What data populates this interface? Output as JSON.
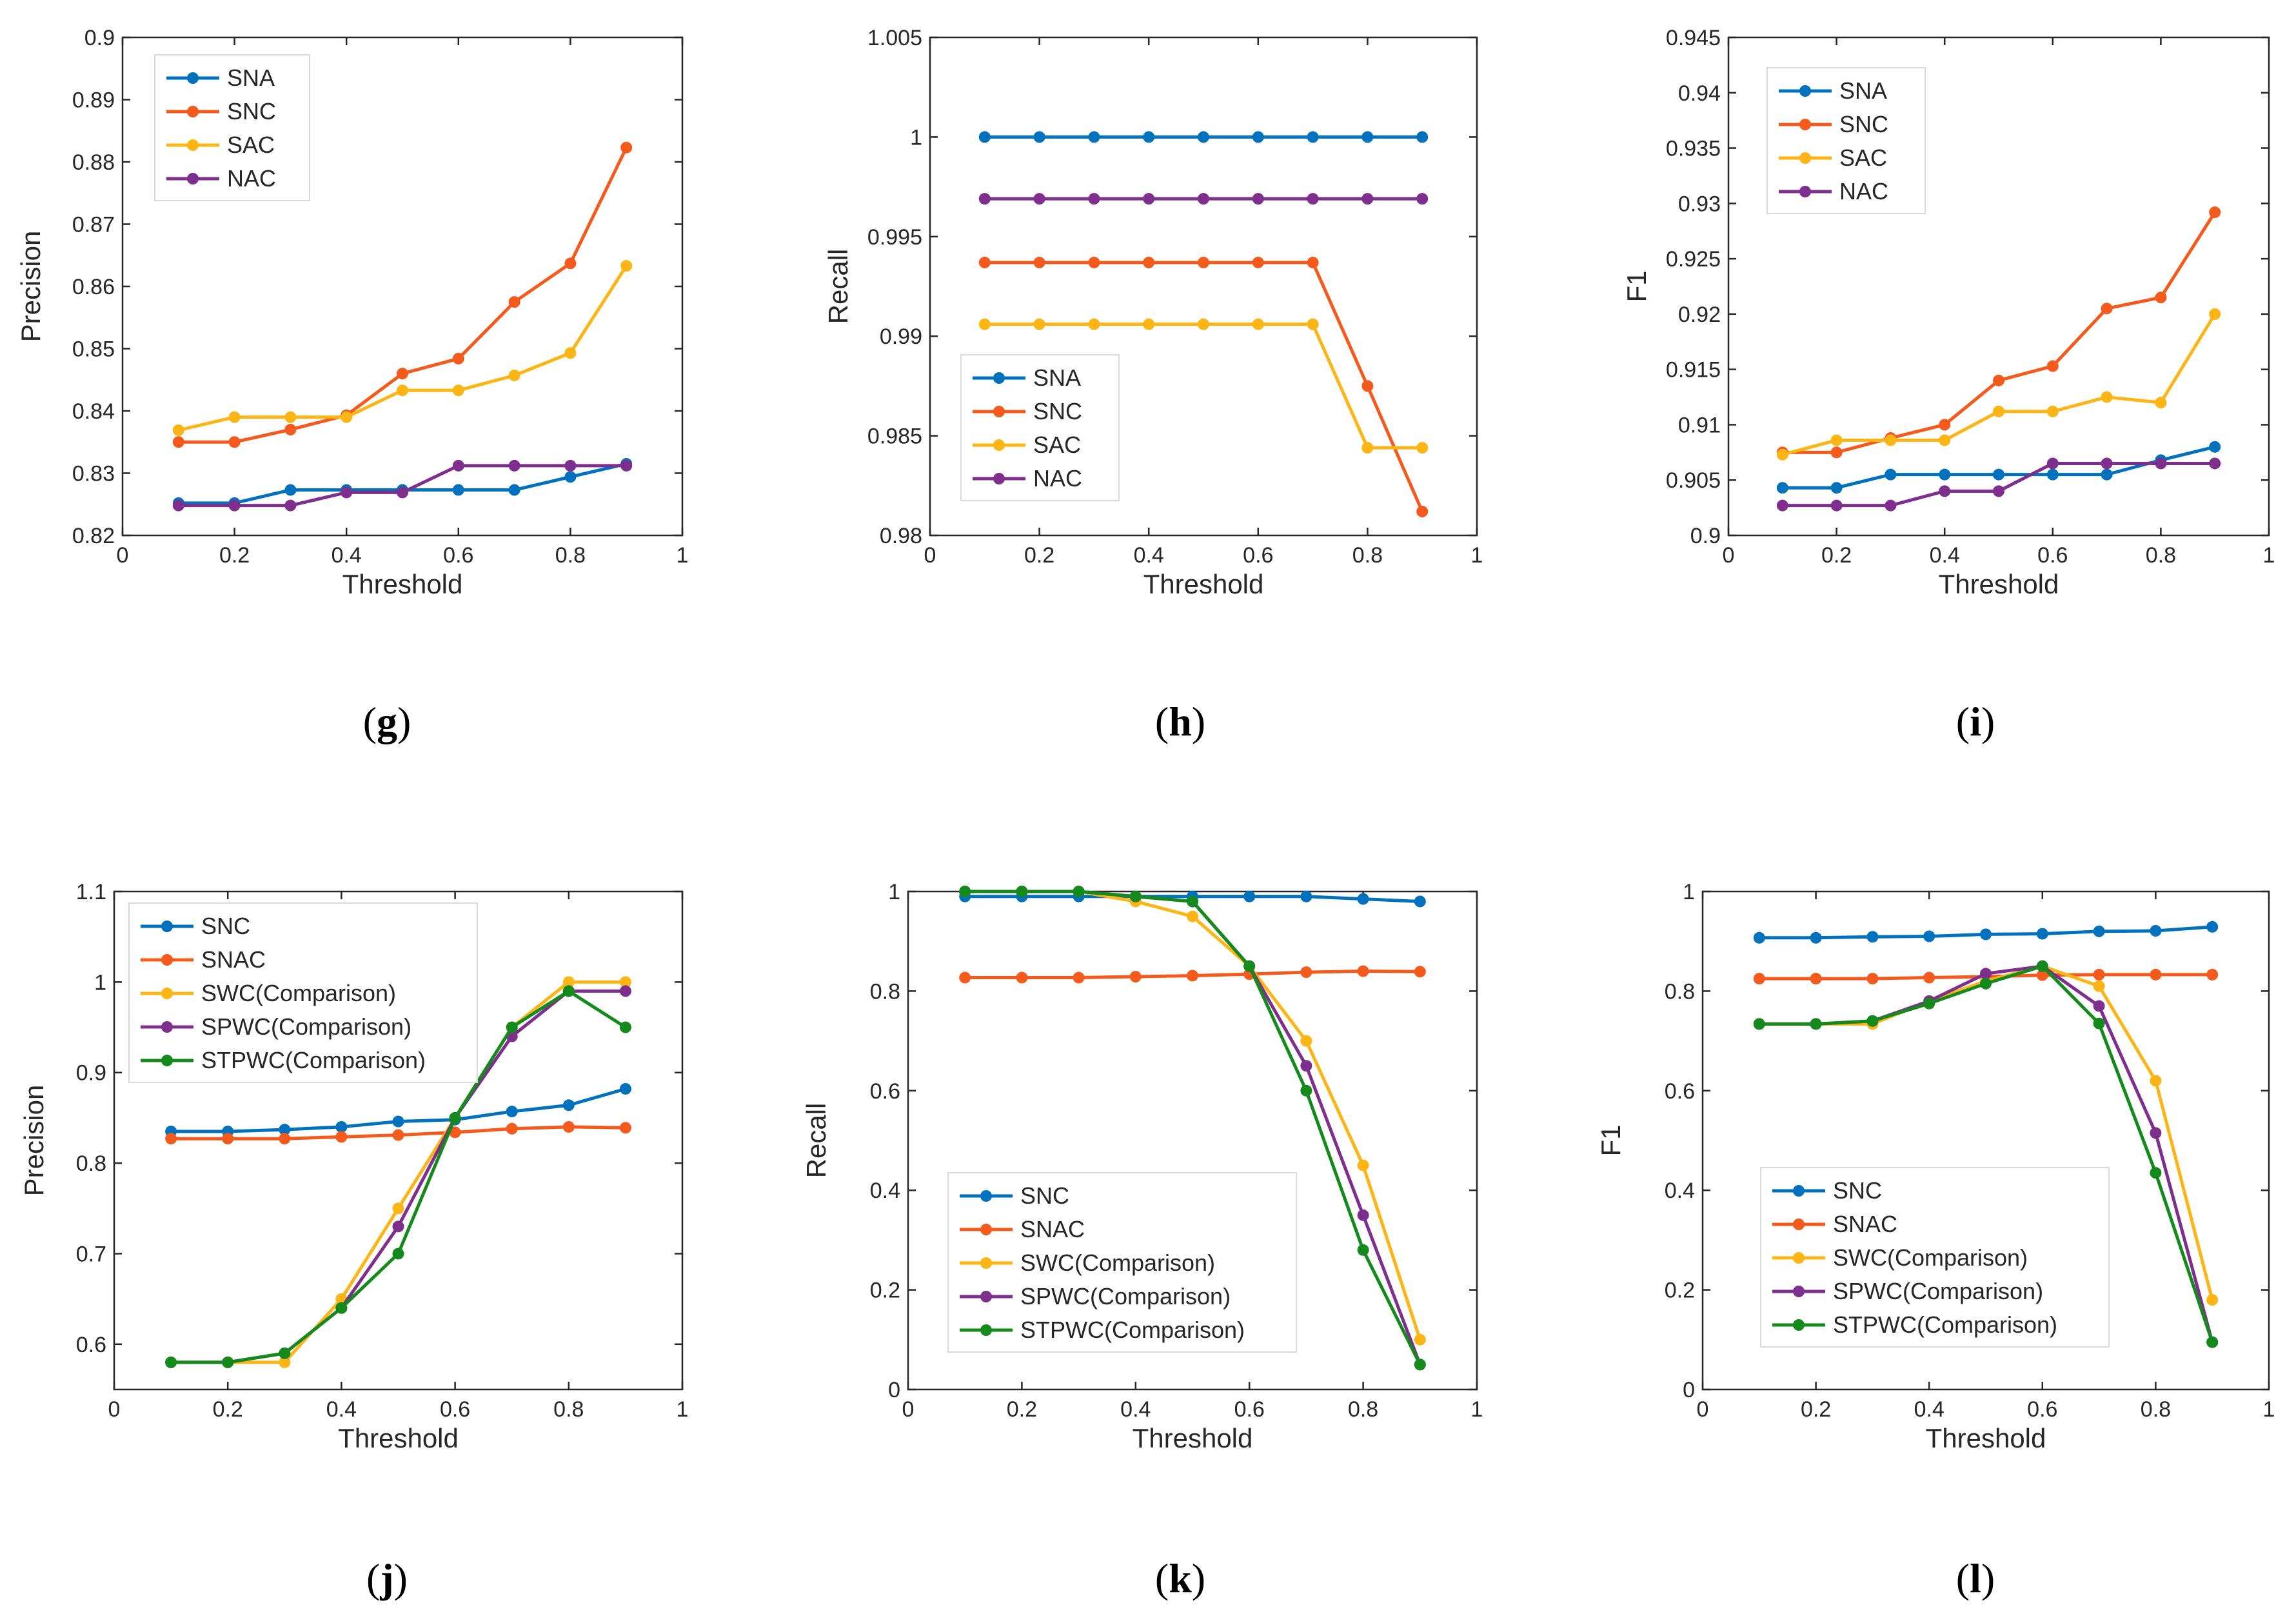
{
  "colors": {
    "blue": "#0072BD",
    "orange": "#F35A1C",
    "yellow": "#FDB515",
    "purple": "#7E2F8E",
    "green": "#138A1B"
  },
  "chart_data": [
    {
      "panel_label": "g",
      "type": "line",
      "xlabel": "Threshold",
      "ylabel": "Precision",
      "xlim": [
        0,
        1
      ],
      "ylim": [
        0.82,
        0.9
      ],
      "xticks": [
        0,
        0.2,
        0.4,
        0.6,
        0.8,
        1
      ],
      "xtick_labels": [
        "0",
        "0.2",
        "0.4",
        "0.6",
        "0.8",
        "1"
      ],
      "yticks": [
        0.82,
        0.83,
        0.84,
        0.85,
        0.86,
        0.87,
        0.88,
        0.89,
        0.9
      ],
      "ytick_labels": [
        "0.82",
        "0.83",
        "0.84",
        "0.85",
        "0.86",
        "0.87",
        "0.88",
        "0.89",
        "0.9"
      ],
      "legend_position": "top-left",
      "x": [
        0.1,
        0.2,
        0.3,
        0.4,
        0.5,
        0.6,
        0.7,
        0.8,
        0.9
      ],
      "series": [
        {
          "name": "SNA",
          "color": "blue",
          "values": [
            0.8252,
            0.8252,
            0.8273,
            0.8273,
            0.8273,
            0.8273,
            0.8273,
            0.8294,
            0.8315
          ]
        },
        {
          "name": "SNC",
          "color": "orange",
          "values": [
            0.835,
            0.835,
            0.837,
            0.8393,
            0.846,
            0.8484,
            0.8575,
            0.8637,
            0.8823
          ]
        },
        {
          "name": "SAC",
          "color": "yellow",
          "values": [
            0.8369,
            0.839,
            0.839,
            0.839,
            0.8433,
            0.8433,
            0.8457,
            0.8493,
            0.8633
          ]
        },
        {
          "name": "NAC",
          "color": "purple",
          "values": [
            0.8248,
            0.8248,
            0.8248,
            0.8269,
            0.8269,
            0.8312,
            0.8312,
            0.8312,
            0.8312
          ]
        }
      ]
    },
    {
      "panel_label": "h",
      "type": "line",
      "xlabel": "Threshold",
      "ylabel": "Recall",
      "xlim": [
        0,
        1
      ],
      "ylim": [
        0.98,
        1.005
      ],
      "xticks": [
        0,
        0.2,
        0.4,
        0.6,
        0.8,
        1
      ],
      "xtick_labels": [
        "0",
        "0.2",
        "0.4",
        "0.6",
        "0.8",
        "1"
      ],
      "yticks": [
        0.98,
        0.985,
        0.99,
        0.995,
        1,
        1.005
      ],
      "ytick_labels": [
        "0.98",
        "0.985",
        "0.99",
        "0.995",
        "1",
        "1.005"
      ],
      "legend_position": "center-left",
      "x": [
        0.1,
        0.2,
        0.3,
        0.4,
        0.5,
        0.6,
        0.7,
        0.8,
        0.9
      ],
      "series": [
        {
          "name": "SNA",
          "color": "blue",
          "values": [
            1,
            1,
            1,
            1,
            1,
            1,
            1,
            1,
            1
          ]
        },
        {
          "name": "SNC",
          "color": "orange",
          "values": [
            0.9937,
            0.9937,
            0.9937,
            0.9937,
            0.9937,
            0.9937,
            0.9937,
            0.9875,
            0.9812
          ]
        },
        {
          "name": "SAC",
          "color": "yellow",
          "values": [
            0.9906,
            0.9906,
            0.9906,
            0.9906,
            0.9906,
            0.9906,
            0.9906,
            0.9844,
            0.9844
          ]
        },
        {
          "name": "NAC",
          "color": "purple",
          "values": [
            0.9969,
            0.9969,
            0.9969,
            0.9969,
            0.9969,
            0.9969,
            0.9969,
            0.9969,
            0.9969
          ]
        }
      ]
    },
    {
      "panel_label": "i",
      "type": "line",
      "xlabel": "Threshold",
      "ylabel": "F1",
      "xlim": [
        0,
        1
      ],
      "ylim": [
        0.9,
        0.945
      ],
      "xticks": [
        0,
        0.2,
        0.4,
        0.6,
        0.8,
        1
      ],
      "xtick_labels": [
        "0",
        "0.2",
        "0.4",
        "0.6",
        "0.8",
        "1"
      ],
      "yticks": [
        0.9,
        0.905,
        0.91,
        0.915,
        0.92,
        0.925,
        0.93,
        0.935,
        0.94,
        0.945
      ],
      "ytick_labels": [
        "0.9",
        "0.905",
        "0.91",
        "0.915",
        "0.92",
        "0.925",
        "0.93",
        "0.935",
        "0.94",
        "0.945"
      ],
      "legend_position": "top-left",
      "x": [
        0.1,
        0.2,
        0.3,
        0.4,
        0.5,
        0.6,
        0.7,
        0.8,
        0.9
      ],
      "series": [
        {
          "name": "SNA",
          "color": "blue",
          "values": [
            0.9043,
            0.9043,
            0.9055,
            0.9055,
            0.9055,
            0.9055,
            0.9055,
            0.9068,
            0.908
          ]
        },
        {
          "name": "SNC",
          "color": "orange",
          "values": [
            0.9075,
            0.9075,
            0.9088,
            0.91,
            0.914,
            0.9153,
            0.9205,
            0.9215,
            0.9292
          ]
        },
        {
          "name": "SAC",
          "color": "yellow",
          "values": [
            0.9073,
            0.9086,
            0.9086,
            0.9086,
            0.9112,
            0.9112,
            0.9125,
            0.912,
            0.92
          ]
        },
        {
          "name": "NAC",
          "color": "purple",
          "values": [
            0.9027,
            0.9027,
            0.9027,
            0.904,
            0.904,
            0.9065,
            0.9065,
            0.9065,
            0.9065
          ]
        }
      ]
    },
    {
      "panel_label": "j",
      "type": "line",
      "xlabel": "Threshold",
      "ylabel": "Precision",
      "xlim": [
        0,
        1
      ],
      "ylim": [
        0.55,
        1.1
      ],
      "xticks": [
        0,
        0.2,
        0.4,
        0.6,
        0.8,
        1
      ],
      "xtick_labels": [
        "0",
        "0.2",
        "0.4",
        "0.6",
        "0.8",
        "1"
      ],
      "yticks": [
        0.6,
        0.7,
        0.8,
        0.9,
        1,
        1.1
      ],
      "ytick_labels": [
        "0.6",
        "0.7",
        "0.8",
        "0.9",
        "1",
        "1.1"
      ],
      "legend_position": "top-left",
      "x": [
        0.1,
        0.2,
        0.3,
        0.4,
        0.5,
        0.6,
        0.7,
        0.8,
        0.9
      ],
      "series": [
        {
          "name": "SNC",
          "color": "blue",
          "values": [
            0.835,
            0.835,
            0.837,
            0.84,
            0.846,
            0.848,
            0.857,
            0.864,
            0.882
          ]
        },
        {
          "name": "SNAC",
          "color": "orange",
          "values": [
            0.827,
            0.827,
            0.827,
            0.829,
            0.831,
            0.834,
            0.838,
            0.84,
            0.839
          ]
        },
        {
          "name": "SWC(Comparison)",
          "color": "yellow",
          "values": [
            0.58,
            0.58,
            0.58,
            0.65,
            0.75,
            0.85,
            0.95,
            1.0,
            1.0
          ]
        },
        {
          "name": "SPWC(Comparison)",
          "color": "purple",
          "values": [
            0.58,
            0.58,
            0.59,
            0.64,
            0.73,
            0.85,
            0.94,
            0.99,
            0.99
          ]
        },
        {
          "name": "STPWC(Comparison)",
          "color": "green",
          "values": [
            0.58,
            0.58,
            0.59,
            0.64,
            0.7,
            0.85,
            0.95,
            0.99,
            0.95
          ]
        }
      ]
    },
    {
      "panel_label": "k",
      "type": "line",
      "xlabel": "Threshold",
      "ylabel": "Recall",
      "xlim": [
        0,
        1
      ],
      "ylim": [
        0,
        1
      ],
      "xticks": [
        0,
        0.2,
        0.4,
        0.6,
        0.8,
        1
      ],
      "xtick_labels": [
        "0",
        "0.2",
        "0.4",
        "0.6",
        "0.8",
        "1"
      ],
      "yticks": [
        0,
        0.2,
        0.4,
        0.6,
        0.8,
        1
      ],
      "ytick_labels": [
        "0",
        "0.2",
        "0.4",
        "0.6",
        "0.8",
        "1"
      ],
      "legend_position": "bottom-left",
      "x": [
        0.1,
        0.2,
        0.3,
        0.4,
        0.5,
        0.6,
        0.7,
        0.8,
        0.9
      ],
      "series": [
        {
          "name": "SNC",
          "color": "blue",
          "values": [
            0.99,
            0.99,
            0.99,
            0.99,
            0.99,
            0.99,
            0.99,
            0.985,
            0.98
          ]
        },
        {
          "name": "SNAC",
          "color": "orange",
          "values": [
            0.827,
            0.827,
            0.827,
            0.829,
            0.831,
            0.834,
            0.838,
            0.84,
            0.839
          ]
        },
        {
          "name": "SWC(Comparison)",
          "color": "yellow",
          "values": [
            1.0,
            1.0,
            1.0,
            0.98,
            0.95,
            0.85,
            0.7,
            0.45,
            0.1
          ]
        },
        {
          "name": "SPWC(Comparison)",
          "color": "purple",
          "values": [
            1.0,
            1.0,
            1.0,
            0.99,
            0.98,
            0.85,
            0.65,
            0.35,
            0.05
          ]
        },
        {
          "name": "STPWC(Comparison)",
          "color": "green",
          "values": [
            1.0,
            1.0,
            1.0,
            0.99,
            0.98,
            0.85,
            0.6,
            0.28,
            0.05
          ]
        }
      ]
    },
    {
      "panel_label": "l",
      "type": "line",
      "xlabel": "Threshold",
      "ylabel": "F1",
      "xlim": [
        0,
        1
      ],
      "ylim": [
        0,
        1
      ],
      "xticks": [
        0,
        0.2,
        0.4,
        0.6,
        0.8,
        1
      ],
      "xtick_labels": [
        "0",
        "0.2",
        "0.4",
        "0.6",
        "0.8",
        "1"
      ],
      "yticks": [
        0,
        0.2,
        0.4,
        0.6,
        0.8,
        1
      ],
      "ytick_labels": [
        "0",
        "0.2",
        "0.4",
        "0.6",
        "0.8",
        "1"
      ],
      "legend_position": "bottom-left",
      "x": [
        0.1,
        0.2,
        0.3,
        0.4,
        0.5,
        0.6,
        0.7,
        0.8,
        0.9
      ],
      "series": [
        {
          "name": "SNC",
          "color": "blue",
          "values": [
            0.907,
            0.907,
            0.909,
            0.91,
            0.914,
            0.915,
            0.92,
            0.921,
            0.929
          ]
        },
        {
          "name": "SNAC",
          "color": "orange",
          "values": [
            0.825,
            0.825,
            0.825,
            0.827,
            0.829,
            0.832,
            0.833,
            0.833,
            0.833
          ]
        },
        {
          "name": "SWC(Comparison)",
          "color": "yellow",
          "values": [
            0.734,
            0.734,
            0.734,
            0.78,
            0.82,
            0.85,
            0.81,
            0.62,
            0.18
          ]
        },
        {
          "name": "SPWC(Comparison)",
          "color": "purple",
          "values": [
            0.734,
            0.734,
            0.74,
            0.78,
            0.835,
            0.85,
            0.77,
            0.515,
            0.095
          ]
        },
        {
          "name": "STPWC(Comparison)",
          "color": "green",
          "values": [
            0.734,
            0.734,
            0.74,
            0.775,
            0.815,
            0.85,
            0.735,
            0.435,
            0.095
          ]
        }
      ]
    }
  ]
}
